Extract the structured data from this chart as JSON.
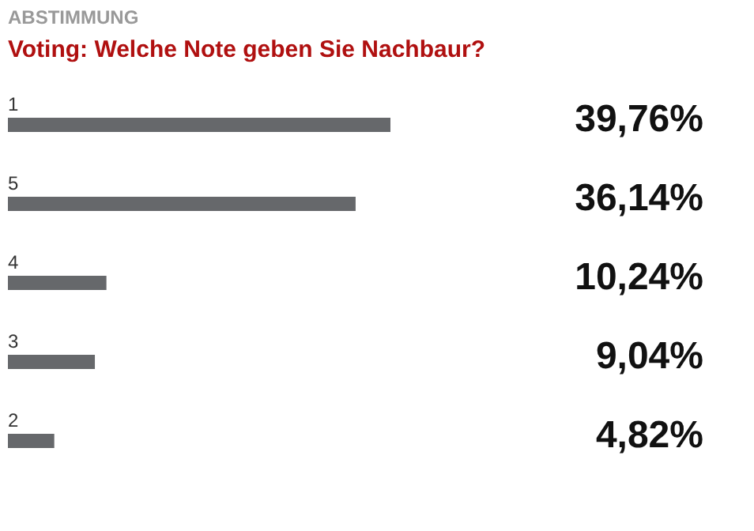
{
  "chart_data": {
    "type": "bar",
    "orientation": "horizontal",
    "title": "ABSTIMMUNG",
    "subtitle": "Voting: Welche Note geben Sie Nachbaur?",
    "categories": [
      "1",
      "5",
      "4",
      "3",
      "2"
    ],
    "values": [
      39.76,
      36.14,
      10.24,
      9.04,
      4.82
    ],
    "value_labels": [
      "39,76%",
      "36,14%",
      "10,24%",
      "9,04%",
      "4,82%"
    ],
    "color": "#66686b"
  }
}
